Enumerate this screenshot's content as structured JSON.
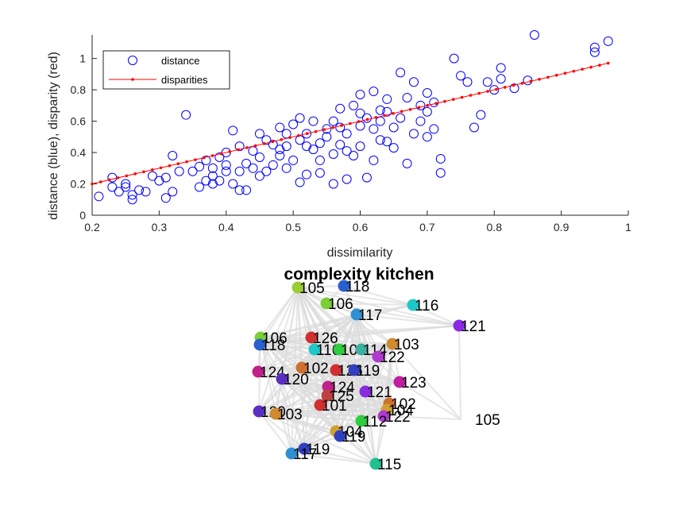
{
  "chart_data": [
    {
      "type": "scatter",
      "xlabel": "dissimilarity",
      "ylabel": "distance (blue), disparity (red)",
      "xlim": [
        0.2,
        1
      ],
      "ylim": [
        0,
        1.15
      ],
      "xticks": [
        "0.2",
        "0.3",
        "0.4",
        "0.5",
        "0.6",
        "0.7",
        "0.8",
        "0.9",
        "1"
      ],
      "yticks": [
        "0",
        "0.2",
        "0.4",
        "0.6",
        "0.8",
        "1"
      ],
      "legend": {
        "placement": "top-left",
        "entries": [
          {
            "label": "distance",
            "color": "#0000ff",
            "marker": "circle"
          },
          {
            "label": "disparities",
            "color": "#ff0000",
            "marker": "dot-line"
          }
        ]
      },
      "series": [
        {
          "name": "distance",
          "color": "#0000ff",
          "points": [
            [
              0.21,
              0.12
            ],
            [
              0.23,
              0.18
            ],
            [
              0.23,
              0.24
            ],
            [
              0.24,
              0.15
            ],
            [
              0.25,
              0.18
            ],
            [
              0.25,
              0.2
            ],
            [
              0.26,
              0.13
            ],
            [
              0.26,
              0.1
            ],
            [
              0.27,
              0.16
            ],
            [
              0.28,
              0.15
            ],
            [
              0.29,
              0.25
            ],
            [
              0.3,
              0.22
            ],
            [
              0.31,
              0.11
            ],
            [
              0.31,
              0.24
            ],
            [
              0.32,
              0.15
            ],
            [
              0.32,
              0.38
            ],
            [
              0.33,
              0.28
            ],
            [
              0.34,
              0.64
            ],
            [
              0.35,
              0.28
            ],
            [
              0.36,
              0.18
            ],
            [
              0.37,
              0.22
            ],
            [
              0.37,
              0.35
            ],
            [
              0.38,
              0.25
            ],
            [
              0.38,
              0.3
            ],
            [
              0.39,
              0.22
            ],
            [
              0.39,
              0.37
            ],
            [
              0.4,
              0.28
            ],
            [
              0.4,
              0.4
            ],
            [
              0.41,
              0.2
            ],
            [
              0.41,
              0.54
            ],
            [
              0.42,
              0.28
            ],
            [
              0.42,
              0.44
            ],
            [
              0.43,
              0.16
            ],
            [
              0.43,
              0.33
            ],
            [
              0.44,
              0.3
            ],
            [
              0.45,
              0.25
            ],
            [
              0.45,
              0.37
            ],
            [
              0.45,
              0.52
            ],
            [
              0.46,
              0.28
            ],
            [
              0.47,
              0.45
            ],
            [
              0.48,
              0.38
            ],
            [
              0.48,
              0.56
            ],
            [
              0.49,
              0.3
            ],
            [
              0.49,
              0.52
            ],
            [
              0.5,
              0.35
            ],
            [
              0.5,
              0.58
            ],
            [
              0.51,
              0.21
            ],
            [
              0.51,
              0.48
            ],
            [
              0.52,
              0.26
            ],
            [
              0.52,
              0.44
            ],
            [
              0.53,
              0.6
            ],
            [
              0.54,
              0.27
            ],
            [
              0.54,
              0.35
            ],
            [
              0.55,
              0.5
            ],
            [
              0.56,
              0.2
            ],
            [
              0.56,
              0.39
            ],
            [
              0.56,
              0.6
            ],
            [
              0.57,
              0.45
            ],
            [
              0.57,
              0.68
            ],
            [
              0.58,
              0.23
            ],
            [
              0.58,
              0.52
            ],
            [
              0.59,
              0.38
            ],
            [
              0.59,
              0.7
            ],
            [
              0.6,
              0.44
            ],
            [
              0.6,
              0.57
            ],
            [
              0.61,
              0.62
            ],
            [
              0.61,
              0.24
            ],
            [
              0.62,
              0.35
            ],
            [
              0.62,
              0.79
            ],
            [
              0.63,
              0.48
            ],
            [
              0.63,
              0.6
            ],
            [
              0.64,
              0.74
            ],
            [
              0.65,
              0.56
            ],
            [
              0.65,
              0.43
            ],
            [
              0.66,
              0.62
            ],
            [
              0.66,
              0.91
            ],
            [
              0.67,
              0.33
            ],
            [
              0.68,
              0.52
            ],
            [
              0.68,
              0.85
            ],
            [
              0.69,
              0.6
            ],
            [
              0.7,
              0.66
            ],
            [
              0.7,
              0.78
            ],
            [
              0.71,
              0.55
            ],
            [
              0.71,
              0.72
            ],
            [
              0.72,
              0.27
            ],
            [
              0.72,
              0.36
            ],
            [
              0.74,
              1.0
            ],
            [
              0.75,
              0.89
            ],
            [
              0.76,
              0.85
            ],
            [
              0.77,
              0.56
            ],
            [
              0.78,
              0.64
            ],
            [
              0.79,
              0.85
            ],
            [
              0.8,
              0.8
            ],
            [
              0.81,
              0.87
            ],
            [
              0.81,
              0.94
            ],
            [
              0.83,
              0.81
            ],
            [
              0.85,
              0.86
            ],
            [
              0.86,
              1.15
            ],
            [
              0.95,
              1.04
            ],
            [
              0.95,
              1.07
            ],
            [
              0.97,
              1.11
            ],
            [
              0.36,
              0.31
            ],
            [
              0.44,
              0.41
            ],
            [
              0.47,
              0.32
            ],
            [
              0.53,
              0.42
            ],
            [
              0.55,
              0.55
            ],
            [
              0.58,
              0.41
            ],
            [
              0.63,
              0.67
            ],
            [
              0.69,
              0.7
            ],
            [
              0.4,
              0.32
            ],
            [
              0.38,
              0.2
            ],
            [
              0.42,
              0.16
            ],
            [
              0.49,
              0.44
            ],
            [
              0.51,
              0.62
            ],
            [
              0.54,
              0.46
            ],
            [
              0.57,
              0.56
            ],
            [
              0.6,
              0.77
            ],
            [
              0.62,
              0.55
            ],
            [
              0.64,
              0.66
            ],
            [
              0.67,
              0.75
            ],
            [
              0.7,
              0.5
            ],
            [
              0.46,
              0.48
            ],
            [
              0.48,
              0.42
            ],
            [
              0.52,
              0.52
            ],
            [
              0.6,
              0.65
            ],
            [
              0.64,
              0.47
            ]
          ]
        },
        {
          "name": "disparities",
          "color": "#ff0000",
          "line": [
            [
              0.2,
              0.2
            ],
            [
              0.97,
              0.97
            ]
          ]
        }
      ]
    },
    {
      "type": "network",
      "title": "complexity kitchen",
      "nodes": [
        {
          "label": "105",
          "color": "#9acd32"
        },
        {
          "label": "118",
          "color": "#2a5fcf"
        },
        {
          "label": "106",
          "color": "#7ccf32"
        },
        {
          "label": "117",
          "color": "#2f8fd0"
        },
        {
          "label": "116",
          "color": "#1ec8c8"
        },
        {
          "label": "121",
          "color": "#8a2be2"
        },
        {
          "label": "106",
          "color": "#7ccf32"
        },
        {
          "label": "118",
          "color": "#2a5fcf"
        },
        {
          "label": "126",
          "color": "#d03030"
        },
        {
          "label": "116",
          "color": "#1ec8c8"
        },
        {
          "label": "109",
          "color": "#2ecc40"
        },
        {
          "label": "114",
          "color": "#3db0a0"
        },
        {
          "label": "103",
          "color": "#d08a30"
        },
        {
          "label": "122",
          "color": "#b03ad0"
        },
        {
          "label": "124",
          "color": "#c0208a"
        },
        {
          "label": "120",
          "color": "#5a30c0"
        },
        {
          "label": "102",
          "color": "#d07030"
        },
        {
          "label": "126",
          "color": "#d03030"
        },
        {
          "label": "119",
          "color": "#3040c0"
        },
        {
          "label": "123",
          "color": "#c020a0"
        },
        {
          "label": "124",
          "color": "#c0208a"
        },
        {
          "label": "121",
          "color": "#8a2be2"
        },
        {
          "label": "125",
          "color": "#c04040"
        },
        {
          "label": "101",
          "color": "#d03030"
        },
        {
          "label": "102",
          "color": "#d07030"
        },
        {
          "label": "104",
          "color": "#d0a030"
        },
        {
          "label": "122",
          "color": "#b03ad0"
        },
        {
          "label": "120",
          "color": "#5a30c0"
        },
        {
          "label": "103",
          "color": "#d08a30"
        },
        {
          "label": "112",
          "color": "#2ecc40"
        },
        {
          "label": "104",
          "color": "#d0a030"
        },
        {
          "label": "119",
          "color": "#3040c0"
        },
        {
          "label": "105",
          "color": "none"
        },
        {
          "label": "119",
          "color": "#3040c0"
        },
        {
          "label": "117",
          "color": "#2f8fd0"
        },
        {
          "label": "115",
          "color": "#20c090"
        }
      ]
    }
  ]
}
